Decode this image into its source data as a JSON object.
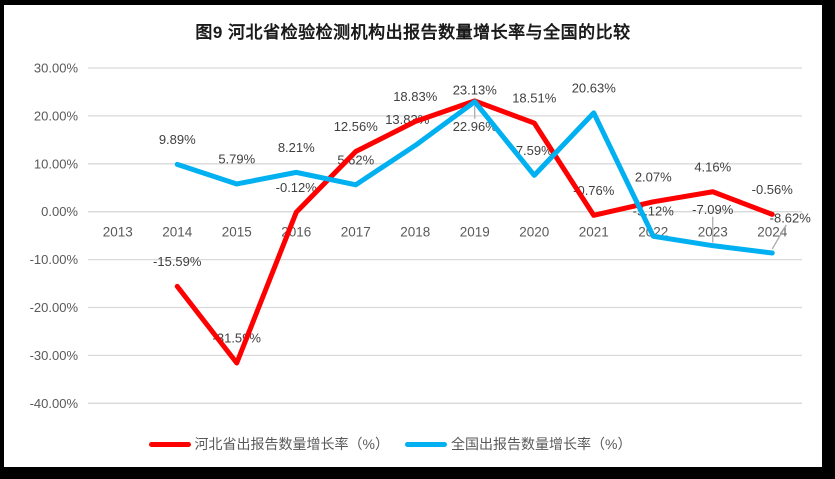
{
  "page": {
    "background": "#000000",
    "panel_background": "#FFFFFF"
  },
  "colors": {
    "grid": "#D9D9D9",
    "tick_text": "#595959",
    "data_label_text": "#404040",
    "leader": "#A6A6A6",
    "series_red": "#FF0000",
    "series_blue": "#00B0F0"
  },
  "chart_data": {
    "type": "line",
    "title": "图9 河北省检验检测机构出报告数量增长率与全国的比较",
    "categories": [
      "2013",
      "2014",
      "2015",
      "2016",
      "2017",
      "2018",
      "2019",
      "2020",
      "2021",
      "2022",
      "2023",
      "2024"
    ],
    "y_axis": {
      "min": -40,
      "max": 30,
      "step": 10,
      "tick_labels": [
        "30.00%",
        "20.00%",
        "10.00%",
        "0.00%",
        "-10.00%",
        "-20.00%",
        "-30.00%",
        "-40.00%"
      ]
    },
    "grid": true,
    "legend_position": "bottom",
    "series": [
      {
        "name": "河北省出报告数量增长率（%）",
        "color": "#FF0000",
        "values": [
          null,
          -15.59,
          -31.59,
          -0.12,
          12.56,
          18.83,
          23.13,
          18.51,
          -0.76,
          2.07,
          4.16,
          -0.56
        ],
        "labels": [
          null,
          "-15.59%",
          "-31.59%",
          "-0.12%",
          "12.56%",
          "18.83%",
          "23.13%",
          "18.51%",
          "-0.76%",
          "2.07%",
          "4.16%",
          "-0.56%"
        ]
      },
      {
        "name": "全国出报告数量增长率（%）",
        "color": "#00B0F0",
        "values": [
          null,
          9.89,
          5.79,
          8.21,
          5.62,
          13.83,
          22.96,
          7.59,
          20.63,
          -5.12,
          -7.09,
          -8.62
        ],
        "labels": [
          null,
          "9.89%",
          "5.79%",
          "8.21%",
          "5.62%",
          "13.83%",
          "22.96%",
          "7.59%",
          "20.63%",
          "-5.12%",
          "-7.09%",
          "-8.62%"
        ]
      }
    ]
  }
}
